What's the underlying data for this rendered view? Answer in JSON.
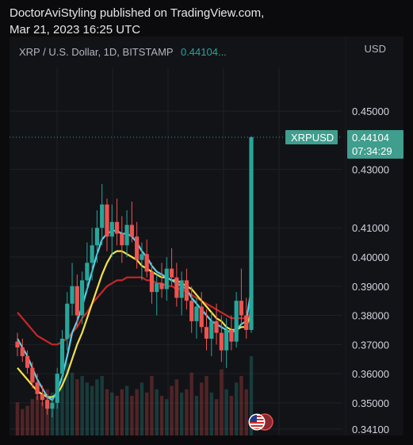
{
  "header": {
    "publisher_line": "DoctorAviStyling published on TradingView.com,",
    "date_line": "Mar 21, 2023 16:25 UTC"
  },
  "chart_header": {
    "symbol": "XRP / U.S. Dollar, 1D, BITSTAMP",
    "last_value": "0.44104..."
  },
  "axis": {
    "unit": "USD"
  },
  "last_price_tag": {
    "symbol_label": "XRPUSD",
    "price": "0.44104",
    "countdown": "07:34:29"
  },
  "colors": {
    "up": "#26a69a",
    "down": "#ef5350",
    "ma_fast": "#5ad1e8",
    "ma_mid": "#f2e34a",
    "ma_slow": "#c62828",
    "tag_bg": "#3f9e8d",
    "background": "#121317",
    "grid": "#1e2026"
  },
  "chart_data": {
    "type": "candlestick",
    "title": "XRP / U.S. Dollar, 1D, BITSTAMP",
    "ylabel": "USD",
    "ylim": [
      0.341,
      0.456
    ],
    "yticks": [
      "0.45000",
      "0.43000",
      "0.41000",
      "0.40000",
      "0.39000",
      "0.38000",
      "0.37000",
      "0.36000",
      "0.35000",
      "0.34100"
    ],
    "ytick_values": [
      0.45,
      0.43,
      0.41,
      0.4,
      0.39,
      0.38,
      0.37,
      0.36,
      0.35,
      0.341
    ],
    "last_price": 0.44104,
    "ohlc": [
      [
        0.371,
        0.374,
        0.366,
        0.369
      ],
      [
        0.369,
        0.372,
        0.364,
        0.366
      ],
      [
        0.366,
        0.368,
        0.36,
        0.362
      ],
      [
        0.362,
        0.364,
        0.355,
        0.357
      ],
      [
        0.357,
        0.36,
        0.351,
        0.353
      ],
      [
        0.353,
        0.356,
        0.349,
        0.351
      ],
      [
        0.351,
        0.353,
        0.346,
        0.348
      ],
      [
        0.348,
        0.352,
        0.345,
        0.35
      ],
      [
        0.35,
        0.362,
        0.348,
        0.36
      ],
      [
        0.36,
        0.375,
        0.358,
        0.372
      ],
      [
        0.372,
        0.388,
        0.368,
        0.384
      ],
      [
        0.384,
        0.398,
        0.38,
        0.39
      ],
      [
        0.39,
        0.394,
        0.376,
        0.38
      ],
      [
        0.38,
        0.395,
        0.377,
        0.392
      ],
      [
        0.392,
        0.405,
        0.388,
        0.398
      ],
      [
        0.398,
        0.41,
        0.392,
        0.404
      ],
      [
        0.404,
        0.416,
        0.398,
        0.41
      ],
      [
        0.41,
        0.425,
        0.404,
        0.418
      ],
      [
        0.418,
        0.42,
        0.402,
        0.407
      ],
      [
        0.407,
        0.418,
        0.4,
        0.412
      ],
      [
        0.412,
        0.42,
        0.404,
        0.408
      ],
      [
        0.408,
        0.414,
        0.398,
        0.404
      ],
      [
        0.404,
        0.416,
        0.4,
        0.411
      ],
      [
        0.411,
        0.419,
        0.405,
        0.407
      ],
      [
        0.407,
        0.412,
        0.396,
        0.399
      ],
      [
        0.399,
        0.405,
        0.392,
        0.401
      ],
      [
        0.401,
        0.406,
        0.393,
        0.395
      ],
      [
        0.395,
        0.398,
        0.384,
        0.388
      ],
      [
        0.388,
        0.394,
        0.38,
        0.391
      ],
      [
        0.391,
        0.398,
        0.386,
        0.389
      ],
      [
        0.389,
        0.4,
        0.385,
        0.396
      ],
      [
        0.396,
        0.403,
        0.39,
        0.393
      ],
      [
        0.393,
        0.398,
        0.383,
        0.386
      ],
      [
        0.386,
        0.395,
        0.38,
        0.392
      ],
      [
        0.392,
        0.396,
        0.382,
        0.385
      ],
      [
        0.385,
        0.39,
        0.374,
        0.378
      ],
      [
        0.378,
        0.386,
        0.372,
        0.383
      ],
      [
        0.383,
        0.388,
        0.374,
        0.376
      ],
      [
        0.376,
        0.382,
        0.368,
        0.372
      ],
      [
        0.372,
        0.381,
        0.366,
        0.378
      ],
      [
        0.378,
        0.384,
        0.37,
        0.374
      ],
      [
        0.374,
        0.38,
        0.364,
        0.368
      ],
      [
        0.368,
        0.379,
        0.362,
        0.375
      ],
      [
        0.375,
        0.38,
        0.368,
        0.371
      ],
      [
        0.371,
        0.388,
        0.369,
        0.385
      ],
      [
        0.385,
        0.396,
        0.377,
        0.38
      ],
      [
        0.38,
        0.386,
        0.372,
        0.375
      ],
      [
        0.375,
        0.4415,
        0.374,
        0.44104
      ]
    ],
    "ma_fast": [
      0.372,
      0.369,
      0.366,
      0.362,
      0.358,
      0.355,
      0.352,
      0.351,
      0.354,
      0.359,
      0.366,
      0.374,
      0.378,
      0.383,
      0.389,
      0.395,
      0.401,
      0.406,
      0.408,
      0.409,
      0.409,
      0.408,
      0.408,
      0.407,
      0.405,
      0.402,
      0.4,
      0.397,
      0.395,
      0.394,
      0.393,
      0.392,
      0.391,
      0.39,
      0.389,
      0.386,
      0.384,
      0.382,
      0.38,
      0.378,
      0.377,
      0.376,
      0.375,
      0.374,
      0.375,
      0.377,
      0.378,
      0.389
    ],
    "ma_mid": [
      0.362,
      0.36,
      0.358,
      0.356,
      0.354,
      0.353,
      0.352,
      0.352,
      0.353,
      0.356,
      0.36,
      0.365,
      0.37,
      0.374,
      0.379,
      0.384,
      0.389,
      0.394,
      0.398,
      0.401,
      0.402,
      0.402,
      0.401,
      0.4,
      0.399,
      0.397,
      0.396,
      0.395,
      0.394,
      0.393,
      0.393,
      0.392,
      0.392,
      0.391,
      0.39,
      0.389,
      0.387,
      0.385,
      0.383,
      0.381,
      0.379,
      0.378,
      0.376,
      0.375,
      0.375,
      0.376,
      0.376,
      0.381
    ],
    "ma_slow": [
      0.381,
      0.379,
      0.377,
      0.375,
      0.373,
      0.372,
      0.371,
      0.37,
      0.37,
      0.371,
      0.372,
      0.374,
      0.376,
      0.379,
      0.381,
      0.384,
      0.386,
      0.388,
      0.39,
      0.391,
      0.392,
      0.392,
      0.393,
      0.393,
      0.393,
      0.393,
      0.392,
      0.392,
      0.391,
      0.391,
      0.39,
      0.39,
      0.389,
      0.389,
      0.388,
      0.387,
      0.386,
      0.385,
      0.384,
      0.383,
      0.382,
      0.381,
      0.38,
      0.379,
      0.379,
      0.379,
      0.379,
      0.381
    ],
    "volume": [
      0.5,
      0.4,
      0.45,
      0.55,
      0.6,
      0.5,
      0.7,
      0.65,
      0.9,
      1.0,
      1.1,
      0.95,
      0.85,
      0.9,
      0.8,
      0.75,
      0.85,
      0.9,
      0.7,
      0.65,
      0.6,
      0.7,
      0.75,
      0.6,
      0.7,
      0.8,
      0.65,
      0.9,
      0.7,
      0.6,
      0.55,
      0.75,
      0.85,
      0.65,
      0.7,
      0.95,
      0.6,
      0.8,
      0.9,
      0.65,
      0.55,
      1.0,
      0.7,
      0.6,
      0.8,
      0.9,
      0.7,
      1.2
    ]
  }
}
